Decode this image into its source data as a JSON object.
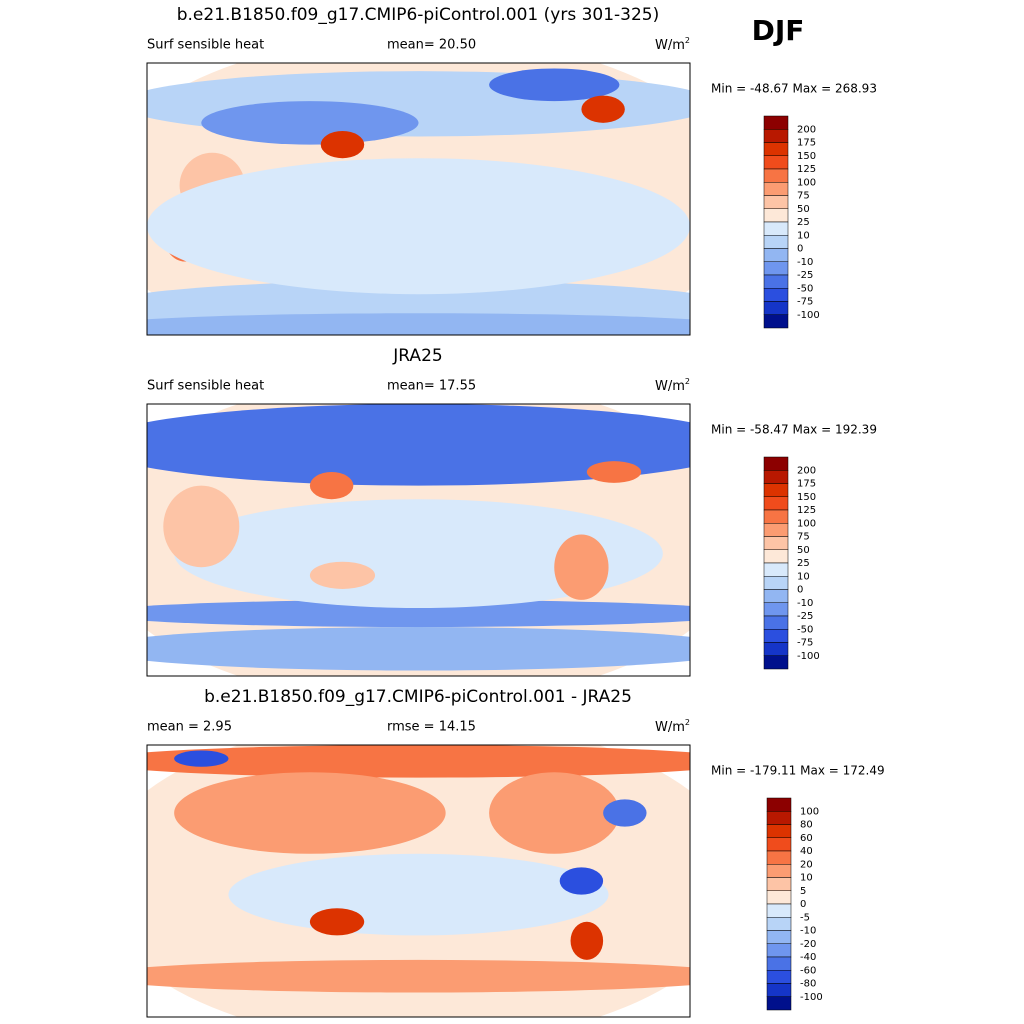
{
  "season": "DJF",
  "panels": [
    {
      "title": "b.e21.B1850.f09_g17.CMIP6-piControl.001 (yrs 301-325)",
      "left": "Surf sensible heat",
      "center": "mean=  20.50",
      "units_base": "W/m",
      "units_sup": "2",
      "minmax": "Min = -48.67 Max = 268.93",
      "colorbar": {
        "labels": [
          "200",
          "175",
          "150",
          "125",
          "100",
          "75",
          "50",
          "25",
          "10",
          "0",
          "-10",
          "-25",
          "-50",
          "-75",
          "-100"
        ],
        "colors": [
          "#8c0000",
          "#b81800",
          "#dc3300",
          "#f04c1c",
          "#f77444",
          "#fb9c72",
          "#fdc4a6",
          "#fde8d8",
          "#d8e9fb",
          "#b8d4f7",
          "#92b6f2",
          "#6f96ee",
          "#4a72e6",
          "#2b4fdf",
          "#1535c8",
          "#00108c"
        ]
      }
    },
    {
      "title": "JRA25",
      "left": "Surf sensible heat",
      "center": "mean=  17.55",
      "units_base": "W/m",
      "units_sup": "2",
      "minmax": "Min = -58.47 Max = 192.39",
      "colorbar": {
        "labels": [
          "200",
          "175",
          "150",
          "125",
          "100",
          "75",
          "50",
          "25",
          "10",
          "0",
          "-10",
          "-25",
          "-50",
          "-75",
          "-100"
        ],
        "colors": [
          "#8c0000",
          "#b81800",
          "#dc3300",
          "#f04c1c",
          "#f77444",
          "#fb9c72",
          "#fdc4a6",
          "#fde8d8",
          "#d8e9fb",
          "#b8d4f7",
          "#92b6f2",
          "#6f96ee",
          "#4a72e6",
          "#2b4fdf",
          "#1535c8",
          "#00108c"
        ]
      }
    },
    {
      "title": "b.e21.B1850.f09_g17.CMIP6-piControl.001 - JRA25",
      "left": "mean =   2.95",
      "center": "rmse =  14.15",
      "units_base": "W/m",
      "units_sup": "2",
      "minmax": "Min = -179.11 Max = 172.49",
      "colorbar": {
        "labels": [
          "100",
          "80",
          "60",
          "40",
          "20",
          "10",
          "5",
          "0",
          "-5",
          "-10",
          "-20",
          "-40",
          "-60",
          "-80",
          "-100"
        ],
        "colors": [
          "#8c0000",
          "#b81800",
          "#dc3300",
          "#f04c1c",
          "#f77444",
          "#fb9c72",
          "#fdc4a6",
          "#fde8d8",
          "#d8e9fb",
          "#b8d4f7",
          "#92b6f2",
          "#6f96ee",
          "#4a72e6",
          "#2b4fdf",
          "#1535c8",
          "#00108c"
        ]
      }
    }
  ]
}
